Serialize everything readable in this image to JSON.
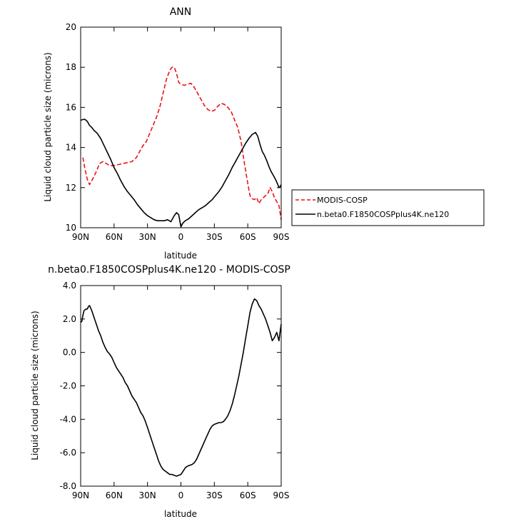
{
  "chart_data": [
    {
      "type": "line",
      "title": "ANN",
      "xlabel": "latitude",
      "ylabel": "Liquid cloud particle size (microns)",
      "xlim": [
        90,
        -90
      ],
      "ylim": [
        10,
        20
      ],
      "xticks": [
        90,
        60,
        30,
        0,
        -30,
        -60,
        -90
      ],
      "xtick_labels": [
        "90N",
        "60N",
        "30N",
        "0",
        "30S",
        "60S",
        "90S"
      ],
      "yticks": [
        10,
        12,
        14,
        16,
        18,
        20
      ],
      "ytick_labels": [
        "10",
        "12",
        "14",
        "16",
        "18",
        "20"
      ],
      "legend_position": "right",
      "series": [
        {
          "name": "MODIS-COSP",
          "color": "#e8141a",
          "dash": "dashed",
          "x": [
            88,
            86,
            84,
            82,
            79,
            76,
            73,
            70,
            67,
            64,
            60,
            56,
            52,
            48,
            44,
            40,
            37,
            34,
            31,
            28,
            25,
            22,
            19,
            16,
            13,
            10,
            8,
            6,
            4,
            2,
            0,
            -3,
            -6,
            -9,
            -12,
            -15,
            -18,
            -21,
            -24,
            -27,
            -30,
            -33,
            -36,
            -39,
            -42,
            -45,
            -48,
            -51,
            -54,
            -57,
            -60,
            -62,
            -64,
            -66,
            -68,
            -70,
            -72,
            -74,
            -76,
            -78,
            -80,
            -82,
            -84,
            -86,
            -88,
            -90
          ],
          "y": [
            13.5,
            12.9,
            12.4,
            12.15,
            12.45,
            12.8,
            13.2,
            13.3,
            13.2,
            13.1,
            13.1,
            13.15,
            13.2,
            13.25,
            13.3,
            13.5,
            13.8,
            14.1,
            14.3,
            14.7,
            15.1,
            15.5,
            16.0,
            16.7,
            17.4,
            17.85,
            18.0,
            18.0,
            17.7,
            17.25,
            17.15,
            17.1,
            17.15,
            17.2,
            17.0,
            16.7,
            16.4,
            16.1,
            15.9,
            15.8,
            15.85,
            16.05,
            16.2,
            16.15,
            16.0,
            15.8,
            15.4,
            15.0,
            14.3,
            13.2,
            12.2,
            11.6,
            11.45,
            11.4,
            11.5,
            11.2,
            11.4,
            11.5,
            11.6,
            11.7,
            12.0,
            11.8,
            11.5,
            11.3,
            11.1,
            10.4
          ]
        },
        {
          "name": "n.beta0.F1850COSPplus4K.ne120",
          "color": "#000000",
          "dash": "solid",
          "x": [
            90,
            88,
            86,
            84,
            82,
            80,
            78,
            75,
            72,
            69,
            66,
            63,
            60,
            57,
            54,
            51,
            48,
            45,
            42,
            39,
            36,
            33,
            30,
            27,
            24,
            21,
            18,
            15,
            12,
            9,
            6,
            4,
            2,
            0,
            -2,
            -4,
            -7,
            -10,
            -13,
            -16,
            -19,
            -22,
            -25,
            -28,
            -31,
            -34,
            -37,
            -40,
            -43,
            -46,
            -49,
            -52,
            -55,
            -58,
            -61,
            -64,
            -67,
            -69,
            -71,
            -73,
            -75,
            -77,
            -79,
            -81,
            -83,
            -85,
            -87,
            -88,
            -89,
            -90
          ],
          "y": [
            15.35,
            15.4,
            15.4,
            15.3,
            15.1,
            15.0,
            14.85,
            14.7,
            14.45,
            14.1,
            13.75,
            13.4,
            13.0,
            12.7,
            12.35,
            12.05,
            11.8,
            11.6,
            11.4,
            11.15,
            10.95,
            10.75,
            10.6,
            10.5,
            10.4,
            10.35,
            10.35,
            10.35,
            10.4,
            10.3,
            10.6,
            10.75,
            10.65,
            10.05,
            10.25,
            10.35,
            10.45,
            10.6,
            10.75,
            10.9,
            11.0,
            11.1,
            11.25,
            11.4,
            11.6,
            11.8,
            12.05,
            12.35,
            12.65,
            13.0,
            13.3,
            13.6,
            13.9,
            14.2,
            14.45,
            14.65,
            14.75,
            14.55,
            14.15,
            13.8,
            13.6,
            13.35,
            13.05,
            12.8,
            12.6,
            12.4,
            12.15,
            12.0,
            12.05,
            12.15
          ]
        }
      ]
    },
    {
      "type": "line",
      "title": "n.beta0.F1850COSPplus4K.ne120 - MODIS-COSP",
      "xlabel": "latitude",
      "ylabel": "Liquid cloud particle size (microns)",
      "xlim": [
        90,
        -90
      ],
      "ylim": [
        -8,
        4
      ],
      "xticks": [
        90,
        60,
        30,
        0,
        -30,
        -60,
        -90
      ],
      "xtick_labels": [
        "90N",
        "60N",
        "30N",
        "0",
        "30S",
        "60S",
        "90S"
      ],
      "yticks": [
        4,
        2,
        0,
        -2,
        -4,
        -6,
        -8
      ],
      "ytick_labels": [
        "4.0",
        "2.0",
        "0.0",
        "-2.0",
        "-4.0",
        "-6.0",
        "-8.0"
      ],
      "series": [
        {
          "name": "",
          "color": "#000000",
          "dash": "solid",
          "x": [
            90,
            89,
            88,
            87,
            86,
            85,
            84,
            83,
            82,
            80,
            78,
            76,
            74,
            72,
            70,
            68,
            66,
            64,
            62,
            60,
            58,
            56,
            54,
            52,
            50,
            48,
            46,
            44,
            42,
            40,
            38,
            36,
            34,
            32,
            30,
            28,
            26,
            24,
            22,
            20,
            18,
            16,
            14,
            12,
            10,
            8,
            6,
            4,
            2,
            0,
            -2,
            -4,
            -6,
            -8,
            -10,
            -12,
            -14,
            -16,
            -18,
            -20,
            -22,
            -24,
            -26,
            -28,
            -30,
            -32,
            -34,
            -36,
            -38,
            -40,
            -42,
            -44,
            -46,
            -48,
            -50,
            -52,
            -54,
            -56,
            -58,
            -60,
            -62,
            -64,
            -66,
            -68,
            -70,
            -72,
            -74,
            -76,
            -78,
            -80,
            -82,
            -84,
            -86,
            -88,
            -89,
            -90
          ],
          "y": [
            1.8,
            1.85,
            2.2,
            2.5,
            2.55,
            2.6,
            2.6,
            2.75,
            2.8,
            2.5,
            2.1,
            1.7,
            1.3,
            1.0,
            0.6,
            0.3,
            0.05,
            -0.1,
            -0.3,
            -0.6,
            -0.9,
            -1.1,
            -1.3,
            -1.5,
            -1.8,
            -2.0,
            -2.3,
            -2.6,
            -2.8,
            -3.0,
            -3.3,
            -3.6,
            -3.8,
            -4.1,
            -4.5,
            -4.9,
            -5.3,
            -5.7,
            -6.1,
            -6.5,
            -6.8,
            -7.0,
            -7.1,
            -7.2,
            -7.3,
            -7.3,
            -7.35,
            -7.4,
            -7.35,
            -7.3,
            -7.1,
            -6.9,
            -6.8,
            -6.75,
            -6.7,
            -6.6,
            -6.4,
            -6.1,
            -5.8,
            -5.5,
            -5.2,
            -4.9,
            -4.6,
            -4.4,
            -4.3,
            -4.25,
            -4.2,
            -4.2,
            -4.15,
            -4.0,
            -3.8,
            -3.5,
            -3.1,
            -2.6,
            -2.0,
            -1.4,
            -0.7,
            0.0,
            0.8,
            1.6,
            2.4,
            2.9,
            3.2,
            3.1,
            2.8,
            2.6,
            2.3,
            2.0,
            1.6,
            1.2,
            0.7,
            0.9,
            1.2,
            0.7,
            1.2,
            1.7
          ]
        }
      ]
    }
  ]
}
